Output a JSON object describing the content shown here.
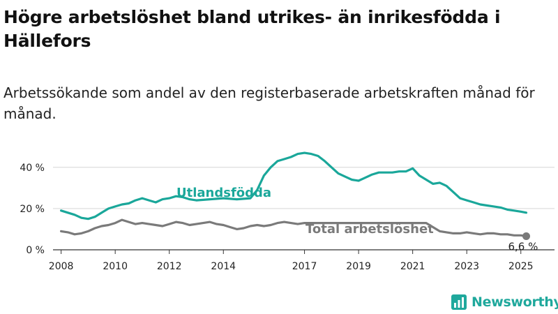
{
  "title": "Högre arbetslöshet bland utrikes- än inrikesfödda i Hällefors",
  "subtitle": "Arbetssökande som andel av den registerbaserade arbetskraften månad för månad.",
  "brand": {
    "name": "Newsworthy",
    "color": "#1fa89c"
  },
  "colors": {
    "foreign_born": "#1aa79a",
    "total": "#7a7a7a",
    "grid": "#d6d6d6"
  },
  "chart_data": {
    "type": "line",
    "ylim": [
      0,
      45
    ],
    "xlim": [
      2007.7,
      2025.6
    ],
    "y_ticks": [
      0,
      20,
      40
    ],
    "y_tick_labels": [
      "0 %",
      "20 %",
      "40 %"
    ],
    "x_ticks": [
      2008,
      2010,
      2012,
      2014,
      2017,
      2019,
      2021,
      2023,
      2025
    ],
    "x_tick_labels": [
      "2008",
      "2010",
      "2012",
      "2014",
      "2017",
      "2019",
      "2021",
      "2023",
      "2025"
    ],
    "grid": "horizontal",
    "end_label": "6,6 %",
    "series": [
      {
        "name": "Utlandsfödda",
        "x": [
          2008.0,
          2008.25,
          2008.5,
          2008.75,
          2009.0,
          2009.25,
          2009.5,
          2009.75,
          2010.0,
          2010.25,
          2010.5,
          2010.75,
          2011.0,
          2011.25,
          2011.5,
          2011.75,
          2012.0,
          2012.25,
          2012.5,
          2012.75,
          2013.0,
          2013.5,
          2014.0,
          2014.5,
          2015.0,
          2015.25,
          2015.5,
          2015.75,
          2016.0,
          2016.25,
          2016.5,
          2016.75,
          2017.0,
          2017.25,
          2017.5,
          2017.75,
          2018.0,
          2018.25,
          2018.5,
          2018.75,
          2019.0,
          2019.25,
          2019.5,
          2019.75,
          2020.0,
          2020.25,
          2020.5,
          2020.75,
          2021.0,
          2021.25,
          2021.5,
          2021.75,
          2022.0,
          2022.25,
          2022.5,
          2022.75,
          2023.0,
          2023.25,
          2023.5,
          2023.75,
          2024.0,
          2024.25,
          2024.5,
          2024.75,
          2025.0,
          2025.2
        ],
        "values": [
          19,
          18,
          17,
          15.5,
          15,
          16,
          18,
          20,
          21,
          22,
          22.5,
          24,
          25,
          24,
          23,
          24.5,
          25,
          26,
          25.5,
          24.5,
          24,
          24.5,
          25,
          24.5,
          25,
          29,
          36,
          40,
          43,
          44,
          45,
          46.5,
          47,
          46.5,
          45.5,
          43,
          40,
          37,
          35.5,
          34,
          33.5,
          35,
          36.5,
          37.5,
          37.5,
          37.5,
          38,
          38,
          39.5,
          36,
          34,
          32,
          32.5,
          31,
          28,
          25,
          24,
          23,
          22,
          21.5,
          21,
          20.5,
          19.5,
          19,
          18.5,
          18
        ]
      },
      {
        "name": "Total arbetslöshet",
        "x": [
          2008.0,
          2008.25,
          2008.5,
          2008.75,
          2009.0,
          2009.25,
          2009.5,
          2009.75,
          2010.0,
          2010.25,
          2010.5,
          2010.75,
          2011.0,
          2011.25,
          2011.5,
          2011.75,
          2012.0,
          2012.25,
          2012.5,
          2012.75,
          2013.0,
          2013.25,
          2013.5,
          2013.75,
          2014.0,
          2014.25,
          2014.5,
          2014.75,
          2015.0,
          2015.25,
          2015.5,
          2015.75,
          2016.0,
          2016.25,
          2016.5,
          2016.75,
          2017.0,
          2017.5,
          2018.0,
          2018.5,
          2019.0,
          2019.5,
          2020.0,
          2020.5,
          2021.0,
          2021.5,
          2022.0,
          2022.25,
          2022.5,
          2022.75,
          2023.0,
          2023.25,
          2023.5,
          2023.75,
          2024.0,
          2024.25,
          2024.5,
          2024.75,
          2025.0,
          2025.2
        ],
        "values": [
          9,
          8.5,
          7.5,
          8,
          9,
          10.5,
          11.5,
          12,
          13,
          14.5,
          13.5,
          12.5,
          13,
          12.5,
          12,
          11.5,
          12.5,
          13.5,
          13,
          12,
          12.5,
          13,
          13.5,
          12.5,
          12,
          11,
          10,
          10.5,
          11.5,
          12,
          11.5,
          12,
          13,
          13.5,
          13,
          12.5,
          13,
          13,
          13,
          13,
          13,
          13,
          13,
          13,
          13,
          13,
          9,
          8.5,
          8,
          8,
          8.5,
          8,
          7.5,
          8,
          8,
          7.5,
          7.5,
          7,
          7,
          6.6
        ]
      }
    ]
  }
}
